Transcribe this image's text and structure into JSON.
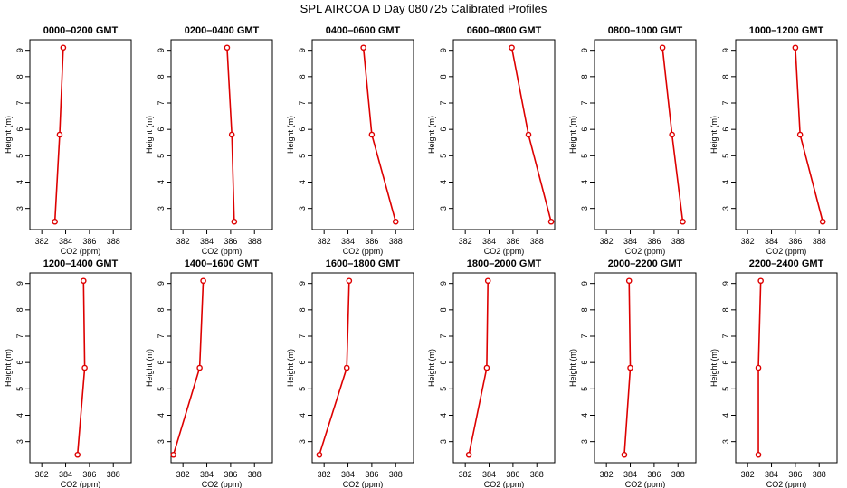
{
  "figure_title": "SPL AIRCOA D  Day 080725  Calibrated Profiles",
  "chart_data": {
    "type": "line",
    "xlabel": "CO2 (ppm)",
    "ylabel": "Height (m)",
    "xlim": [
      381,
      389.5
    ],
    "ylim": [
      2.2,
      9.4
    ],
    "x_ticks": [
      382,
      384,
      386,
      388
    ],
    "y_ticks": [
      3,
      4,
      5,
      6,
      7,
      8,
      9
    ],
    "color": "#dd0000",
    "panels": [
      {
        "title": "0000–0200 GMT",
        "heights": [
          2.5,
          5.8,
          9.1
        ],
        "co2": [
          383.1,
          383.5,
          383.8
        ]
      },
      {
        "title": "0200–0400 GMT",
        "heights": [
          2.5,
          5.8,
          9.1
        ],
        "co2": [
          386.3,
          386.1,
          385.7
        ]
      },
      {
        "title": "0400–0600 GMT",
        "heights": [
          2.5,
          5.8,
          9.1
        ],
        "co2": [
          388.0,
          386.0,
          385.3
        ]
      },
      {
        "title": "0600–0800 GMT",
        "heights": [
          2.5,
          5.8,
          9.1
        ],
        "co2": [
          389.2,
          387.3,
          385.9
        ]
      },
      {
        "title": "0800–1000 GMT",
        "heights": [
          2.5,
          5.8,
          9.1
        ],
        "co2": [
          388.4,
          387.5,
          386.7
        ]
      },
      {
        "title": "1000–1200 GMT",
        "heights": [
          2.5,
          5.8,
          9.1
        ],
        "co2": [
          388.3,
          386.4,
          386.0
        ]
      },
      {
        "title": "1200–1400 GMT",
        "heights": [
          2.5,
          5.8,
          9.1
        ],
        "co2": [
          385.0,
          385.6,
          385.5
        ]
      },
      {
        "title": "1400–1600 GMT",
        "heights": [
          2.5,
          5.8,
          9.1
        ],
        "co2": [
          381.2,
          383.4,
          383.7
        ]
      },
      {
        "title": "1600–1800 GMT",
        "heights": [
          2.5,
          5.8,
          9.1
        ],
        "co2": [
          381.6,
          383.9,
          384.1
        ]
      },
      {
        "title": "1800–2000 GMT",
        "heights": [
          2.5,
          5.8,
          9.1
        ],
        "co2": [
          382.3,
          383.8,
          383.9
        ]
      },
      {
        "title": "2000–2200 GMT",
        "heights": [
          2.5,
          5.8,
          9.1
        ],
        "co2": [
          383.5,
          384.0,
          383.9
        ]
      },
      {
        "title": "2200–2400 GMT",
        "heights": [
          2.5,
          5.8,
          9.1
        ],
        "co2": [
          382.9,
          382.9,
          383.1
        ]
      }
    ]
  }
}
